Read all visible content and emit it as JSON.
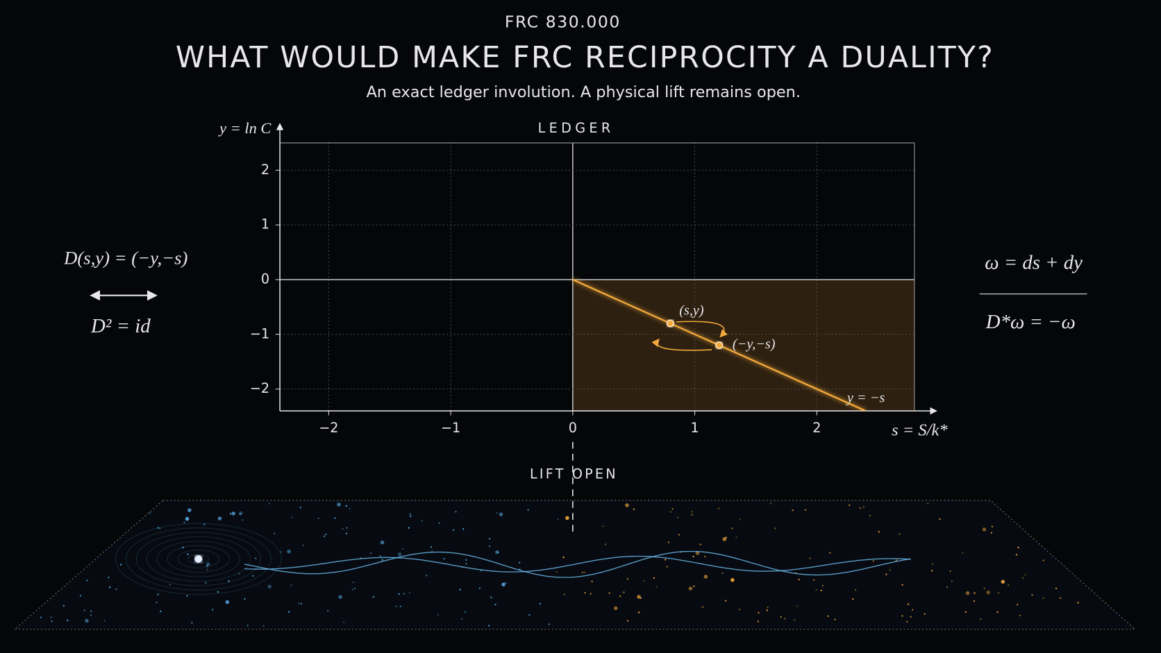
{
  "header": {
    "code": "FRC 830.000",
    "title": "WHAT WOULD MAKE FRC RECIPROCITY A DUALITY?",
    "subtitle": "An exact ledger involution. A physical lift remains open."
  },
  "left_panel": {
    "map": "D(s,y) = (−y,−s)",
    "square": "D² = id"
  },
  "right_panel": {
    "form": "ω = ds + dy",
    "pullback": "D*ω = −ω"
  },
  "chart_data": {
    "type": "line",
    "title": "LEDGER",
    "xlabel": "s = S/k*",
    "ylabel": "y = ln C",
    "xlim": [
      -2.4,
      2.8
    ],
    "ylim": [
      -2.4,
      2.5
    ],
    "xticks": [
      {
        "value": -2,
        "label": "−2"
      },
      {
        "value": -1,
        "label": "−1"
      },
      0,
      1,
      2
    ],
    "yticks": [
      {
        "value": -2,
        "label": "−2"
      },
      {
        "value": -1,
        "label": "−1"
      },
      0,
      1,
      2
    ],
    "grid": true,
    "series": [
      {
        "name": "y = −s",
        "color": "#f2a93b",
        "x": [
          0,
          2.4
        ],
        "values": [
          0,
          -2.4
        ]
      }
    ],
    "points": [
      {
        "label": "(s,y)",
        "x": 0.8,
        "y": -0.8
      },
      {
        "label": "(−y,−s)",
        "x": 1.2,
        "y": -1.2
      }
    ]
  },
  "footer": {
    "label": "LIFT OPEN"
  }
}
